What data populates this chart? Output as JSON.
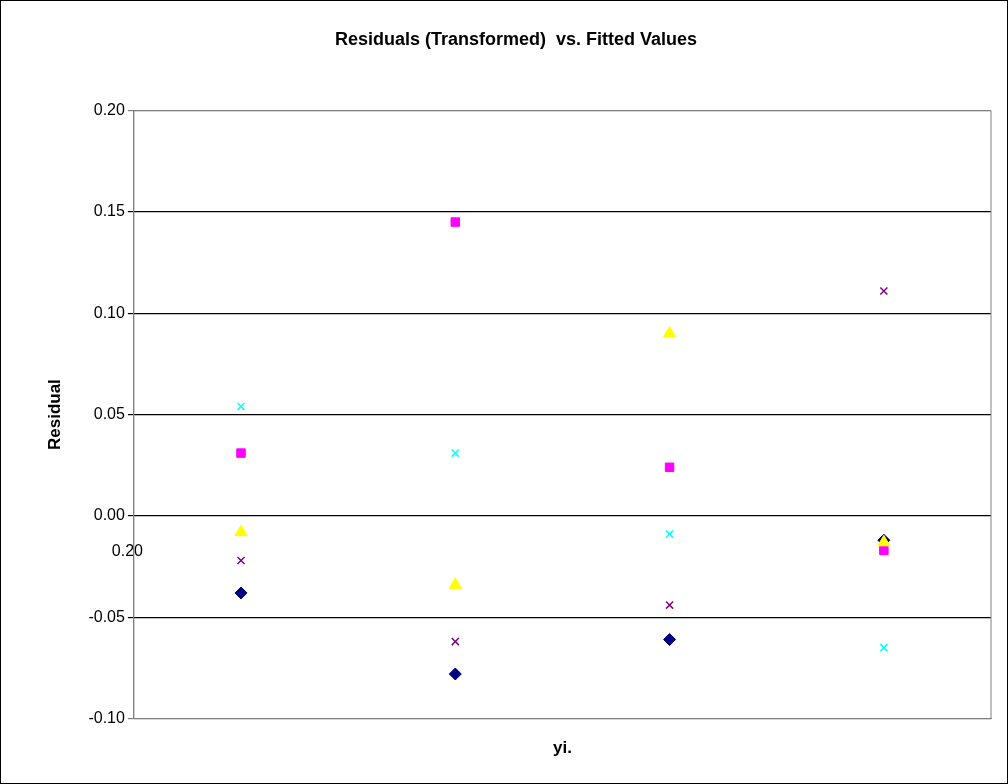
{
  "chart_data": {
    "type": "scatter",
    "title": "Residuals (Transformed)  vs. Fitted Values",
    "xlabel": "yi.",
    "ylabel": "Residual",
    "categories": [
      null,
      null,
      null,
      null
    ],
    "series": [
      {
        "color": "#000080",
        "marker": "diamond",
        "values": [
          -0.038,
          -0.078,
          -0.061,
          -0.012
        ]
      },
      {
        "color": "#ff00ff",
        "marker": "square",
        "values": [
          0.031,
          0.145,
          0.024,
          -0.017
        ]
      },
      {
        "color": "#ffff00",
        "marker": "triangle",
        "values": [
          -0.008,
          -0.034,
          0.09,
          -0.013
        ]
      },
      {
        "color": "#00ffff",
        "marker": "cross",
        "values": [
          0.054,
          0.031,
          -0.009,
          -0.065
        ]
      },
      {
        "color": "#800080",
        "marker": "cross",
        "values": [
          -0.022,
          -0.062,
          -0.044,
          0.111
        ]
      }
    ],
    "ylim": [
      -0.1,
      0.2
    ],
    "yticks": [
      {
        "value": -0.1,
        "label": "-0.10"
      },
      {
        "value": -0.05,
        "label": "-0.05"
      },
      {
        "value": 0,
        "label": "0.00"
      },
      {
        "value": 0.05,
        "label": "0.05"
      },
      {
        "value": 0.1,
        "label": "0.10"
      },
      {
        "value": 0.15,
        "label": "0.15"
      },
      {
        "value": 0.2,
        "label": "0.20"
      }
    ],
    "grid": "y",
    "legend": false,
    "tick_labels": "y",
    "annotations": [
      "0.20"
    ]
  }
}
